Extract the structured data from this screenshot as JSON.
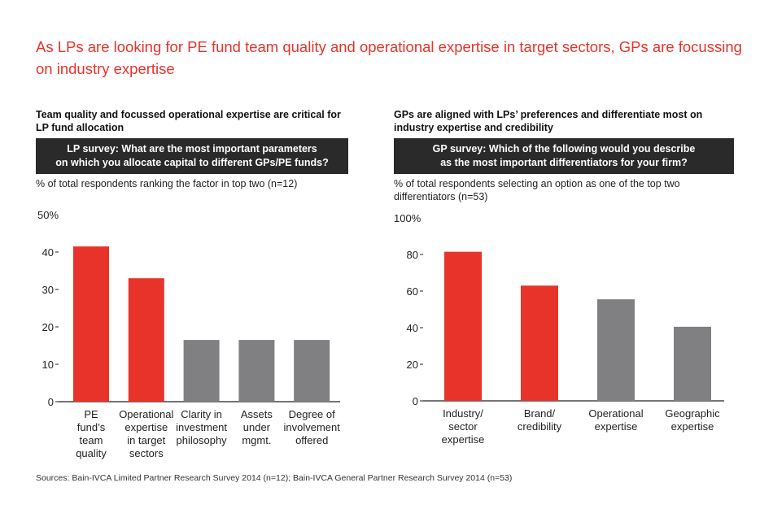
{
  "headline": "As LPs are looking for PE fund team quality and operational expertise in target sectors, GPs are focussing on industry expertise",
  "colors": {
    "accent": "#e8332a",
    "neutral": "#808083",
    "axis": "#222222",
    "banner": "#2a2a2a"
  },
  "left_panel": {
    "subtitle": "Team quality and focussed operational expertise are critical for LP fund allocation",
    "banner": "LP survey: What are the most important parameters\non which you allocate capital to different GPs/PE funds?",
    "note": "% of total respondents ranking the factor in top two (n=12)"
  },
  "right_panel": {
    "subtitle": "GPs are aligned with LPs’ preferences and differentiate most on industry expertise and credibility",
    "banner": "GP survey: Which of the following would you describe\nas the most important differentiators for your firm?",
    "note": "% of total respondents selecting an option as one of the top two differentiators (n=53)"
  },
  "sources": "Sources: Bain-IVCA Limited Partner Research Survey 2014 (n=12); Bain-IVCA General Partner Research Survey 2014 (n=53)",
  "chart_data": [
    {
      "type": "bar",
      "title": "LP survey: What are the most important parameters on which you allocate capital to different GPs/PE funds?",
      "ylabel": "% of total respondents ranking the factor in top two (n=12)",
      "ylim": [
        0,
        50
      ],
      "yticks": [
        0,
        10,
        20,
        30,
        40
      ],
      "ytop_label": "50%",
      "categories": [
        [
          "PE",
          "fund’s",
          "team",
          "quality"
        ],
        [
          "Operational",
          "expertise",
          "in target",
          "sectors"
        ],
        [
          "Clarity in",
          "investment",
          "philosophy"
        ],
        [
          "Assets",
          "under",
          "mgmt."
        ],
        [
          "Degree of",
          "involvement",
          "offered"
        ]
      ],
      "values": [
        41.5,
        33,
        16.5,
        16.5,
        16.5
      ],
      "highlight": [
        true,
        true,
        false,
        false,
        false
      ]
    },
    {
      "type": "bar",
      "title": "GP survey: Which of the following would you describe as the most important differentiators for your firm?",
      "ylabel": "% of total respondents selecting an option as one of the top two differentiators (n=53)",
      "ylim": [
        0,
        100
      ],
      "yticks": [
        0,
        20,
        40,
        60,
        80
      ],
      "ytop_label": "100%",
      "categories": [
        [
          "Industry/",
          "sector",
          "expertise"
        ],
        [
          "Brand/",
          "credibility"
        ],
        [
          "Operational",
          "expertise"
        ],
        [
          "Geographic",
          "expertise"
        ]
      ],
      "values": [
        81.5,
        63,
        55.5,
        40.5
      ],
      "highlight": [
        true,
        true,
        false,
        false
      ]
    }
  ]
}
